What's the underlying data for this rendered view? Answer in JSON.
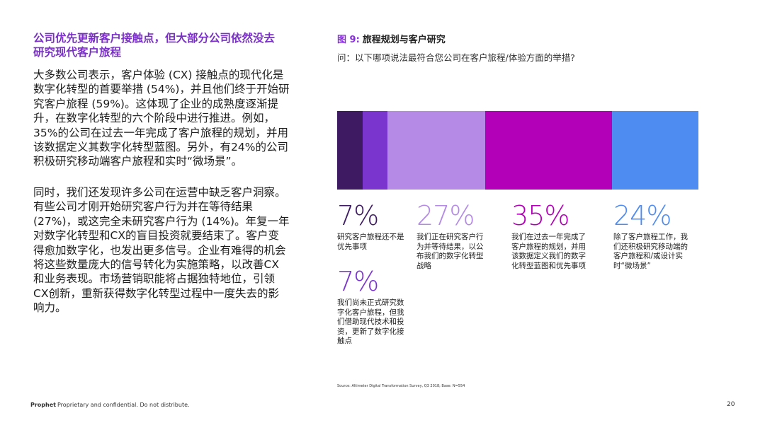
{
  "heading": "公司优先更新客户接触点，但大部分公司依然没去研究现代客户旅程",
  "paragraphs": [
    "大多数公司表示，客户体验 (CX) 接触点的现代化是数字化转型的首要举措 (54%)，并且他们终于开始研究客户旅程 (59%)。这体现了企业的成熟度逐渐提升，在数字化转型的六个阶段中进行推进。例如，35%的公司在过去一年完成了客户旅程的规划，并用该数据定义其数字化转型蓝图。另外，有24%的公司积极研究移动端客户旅程和实时“微场景”。",
    "同时，我们还发现许多公司在运营中缺乏客户洞察。有些公司才刚开始研究客户行为并在等待结果 (27%)，或这完全未研究客户行为 (14%)。年复一年对数字化转型和CX的盲目投资就要结束了。客户变得愈加数字化，也发出更多信号。企业有难得的机会将这些数量庞大的信号转化为实施策略，以改善CX和业务表现。市场营销职能将占据独特地位，引领CX创新，重新获得数字化转型过程中一度失去的影响力。"
  ],
  "chart_data": {
    "type": "stacked-bar",
    "figure_label": "图 9:",
    "title": "旅程规划与客户研究",
    "subtitle": "问：以下哪项说法最符合您公司在客户旅程/体验方面的举措?",
    "series": [
      {
        "name": "研究客户旅程还不是优先事项",
        "color": "#3e1a63",
        "values": [
          7
        ],
        "value_labels": [
          "7%"
        ]
      },
      {
        "name": "我们尚未正式研究数字化客户旅程，但我们借助现代技术和投资，更新了数字化接触点",
        "color": "#7b35cf",
        "values": [
          7
        ],
        "value_labels": [
          "7%"
        ]
      },
      {
        "name": "我们正在研究客户行为并等待结果，以公布我们的数字化转型战略",
        "color": "#b48ae6",
        "values": [
          27
        ],
        "value_labels": [
          "27%"
        ]
      },
      {
        "name": "我们在过去一年完成了客户旅程的规划，并用该数据定义我们的数字化转型蓝图和优先事项",
        "color": "#b300b8",
        "values": [
          35
        ],
        "value_labels": [
          "35%"
        ]
      },
      {
        "name": "除了客户旅程工作，我们还积极研究移动端的客户旅程和/或设计实时“微场景”",
        "color": "#4f8cf2",
        "values": [
          24
        ],
        "value_labels": [
          "24%"
        ]
      }
    ],
    "xlim": [
      0,
      100
    ],
    "source": "Source: Altimeter Digital Transformation Survey, Q3 2018; Base: N=554"
  },
  "footer": {
    "brand": "Prophet",
    "notice": "Proprietary and confidential. Do not distribute.",
    "page": "20"
  }
}
